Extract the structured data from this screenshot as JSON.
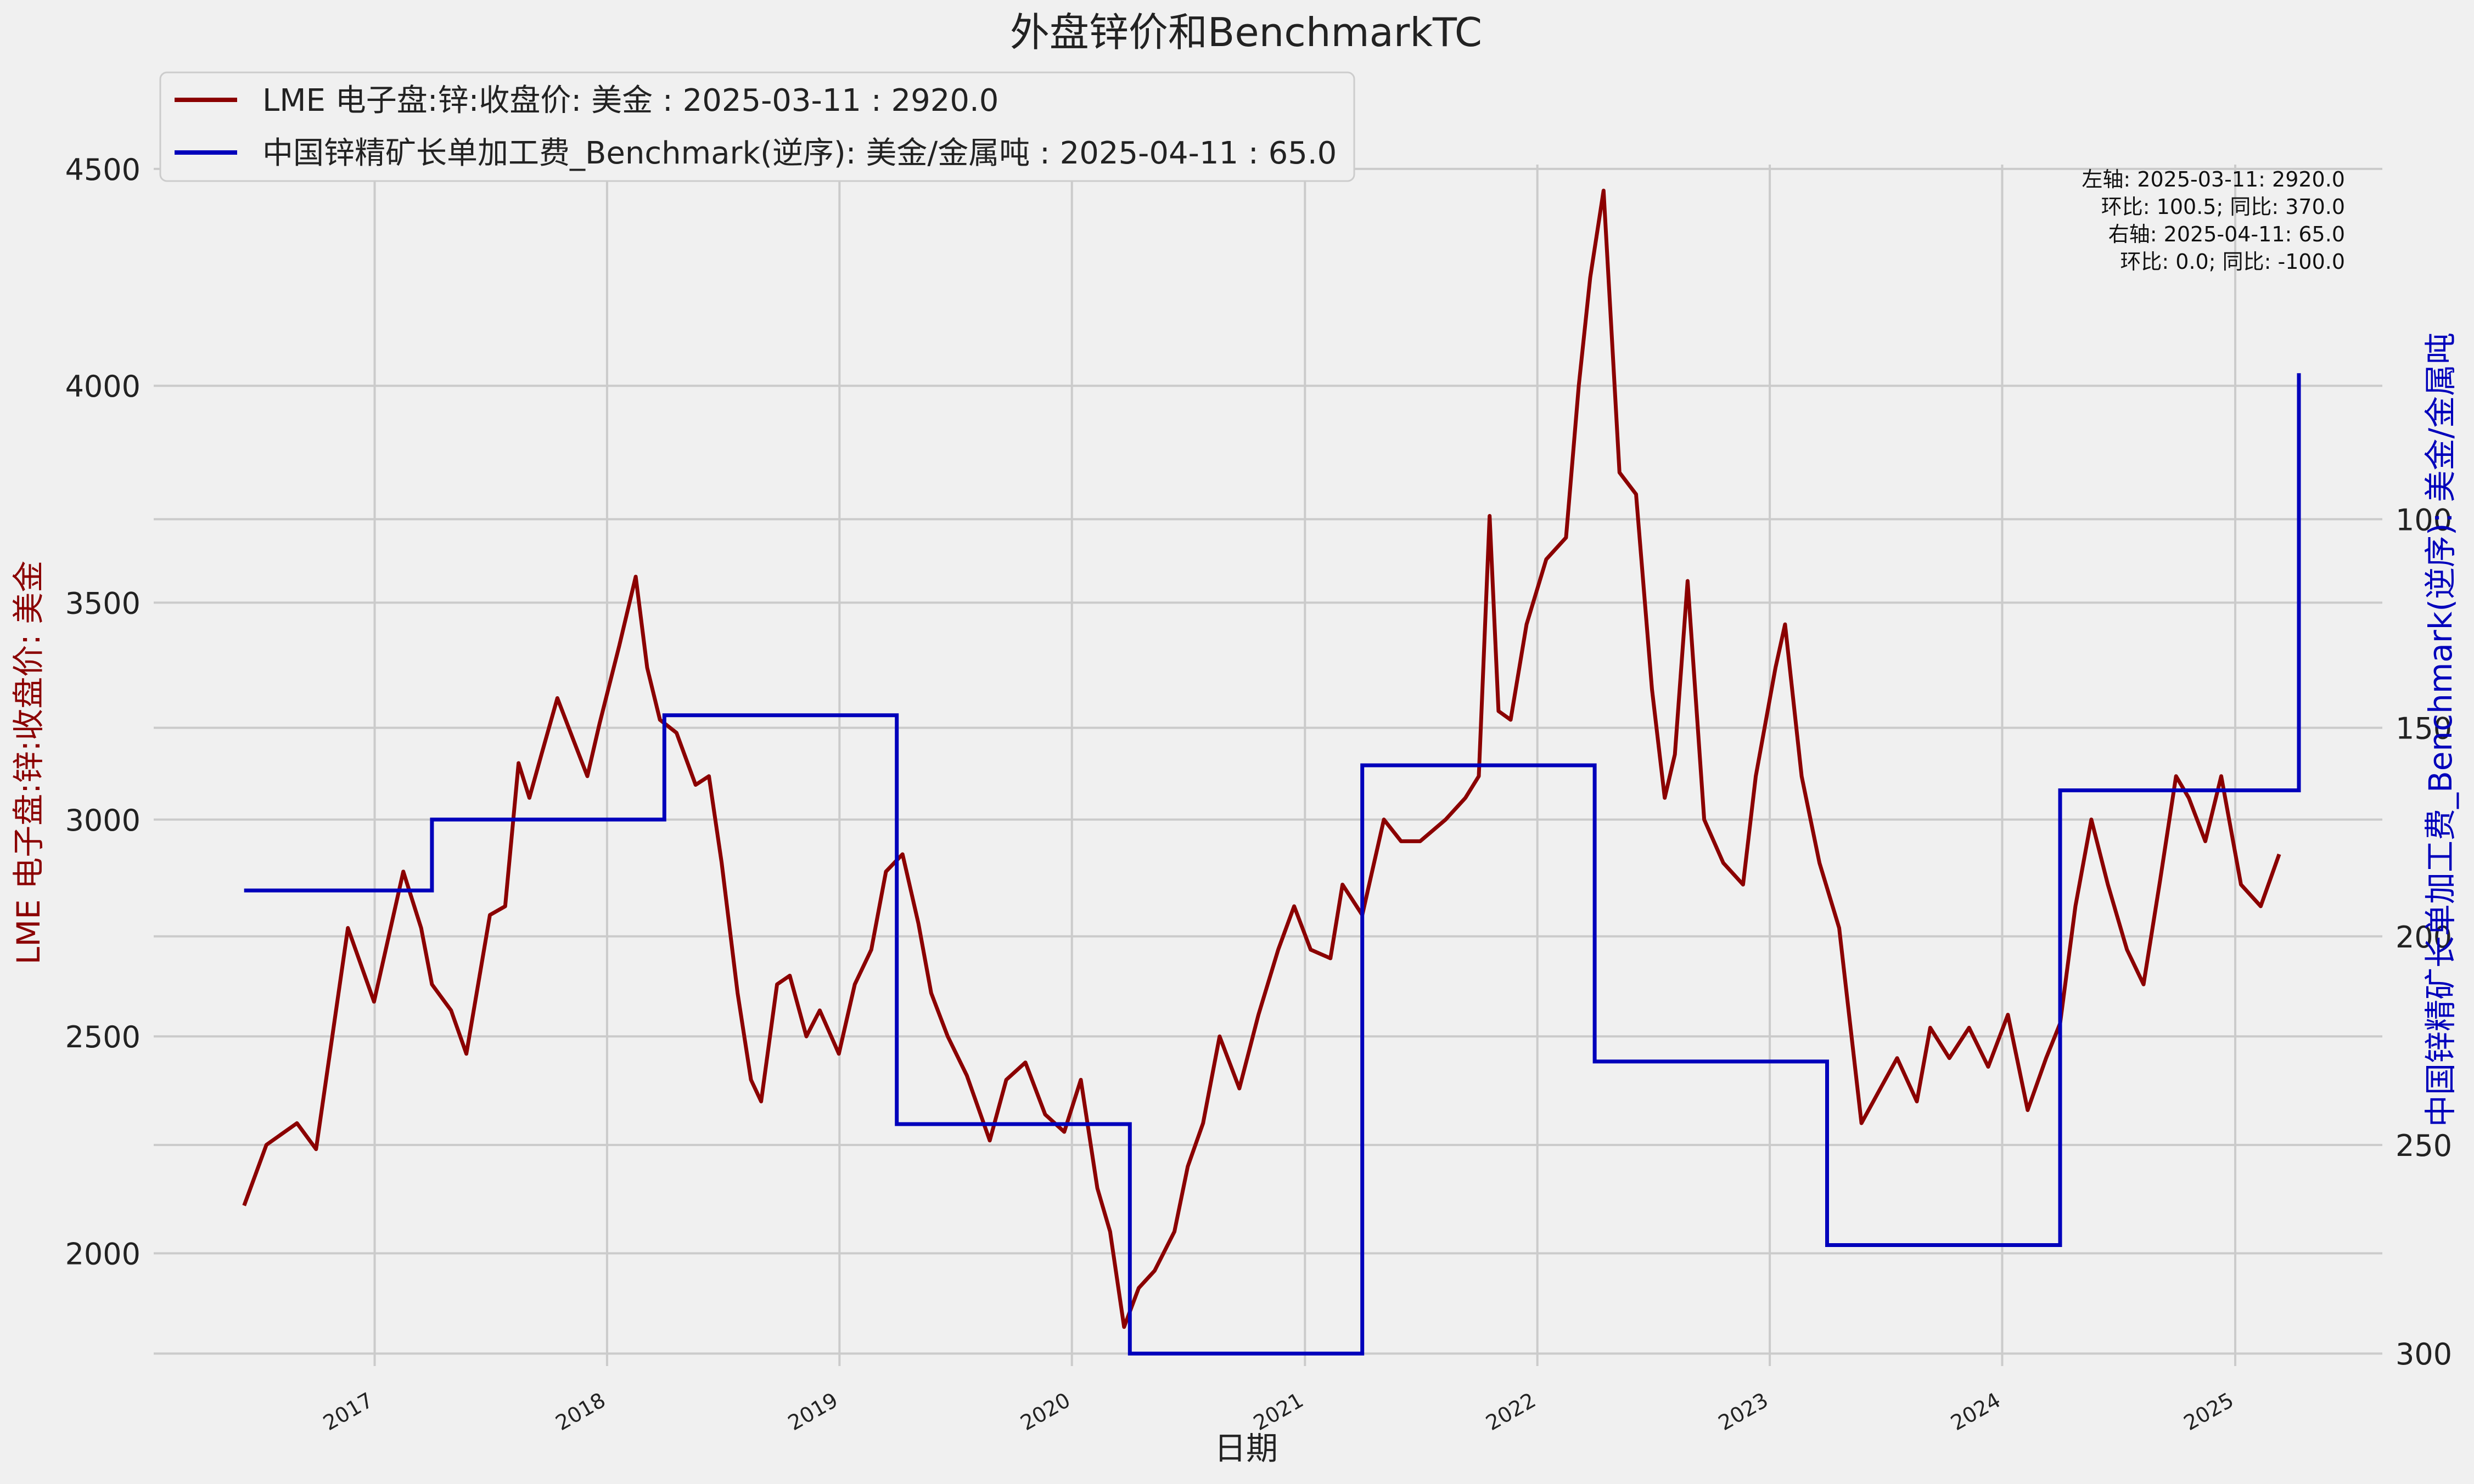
{
  "colors": {
    "left_series": "#8b0000",
    "right_series": "#0000bb",
    "grid": "#cbcbcb",
    "background": "#f0f0f0"
  },
  "chart_data": {
    "type": "line",
    "title": "外盘锌价和BenchmarkTC",
    "xlabel": "日期",
    "ylabel_left": "LME 电子盘:锌:收盘价: 美金",
    "ylabel_right": "中国锌精矿长单加工费_Benchmark(逆序): 美金/金属吨",
    "x_range": [
      "2016-01-20",
      "2025-08-20"
    ],
    "y_left_range": [
      1740,
      4510
    ],
    "y_right_range": [
      303,
      15
    ],
    "y_right_inverted": true,
    "y_left_ticks": [
      "2000",
      "2500",
      "3000",
      "3500",
      "4000",
      "4500"
    ],
    "y_right_ticks": [
      "100",
      "150",
      "200",
      "250",
      "300"
    ],
    "x_ticks": [
      "2017",
      "2018",
      "2019",
      "2020",
      "2021",
      "2022",
      "2023",
      "2024",
      "2025"
    ],
    "grid": true,
    "legend_position": "top-left",
    "legend": [
      "LME 电子盘:锌:收盘价: 美金 : 2025-03-11 : 2920.0",
      "中国锌精矿长单加工费_Benchmark(逆序): 美金/金属吨 : 2025-04-11 : 65.0"
    ],
    "annotation": [
      "左轴:  2025-03-11: 2920.0",
      "环比: 100.5; 同比: 370.0",
      "右轴:  2025-04-11: 65.0",
      "环比: 0.0; 同比: -100.0"
    ],
    "series": [
      {
        "name": "LME 电子盘:锌:收盘价: 美金",
        "axis": "left",
        "points": [
          [
            "2016-06-10",
            2110
          ],
          [
            "2016-07-15",
            2250
          ],
          [
            "2016-09-01",
            2300
          ],
          [
            "2016-10-01",
            2240
          ],
          [
            "2016-11-20",
            2750
          ],
          [
            "2016-12-31",
            2580
          ],
          [
            "2017-02-15",
            2880
          ],
          [
            "2017-03-15",
            2750
          ],
          [
            "2017-04-01",
            2620
          ],
          [
            "2017-05-01",
            2560
          ],
          [
            "2017-05-25",
            2460
          ],
          [
            "2017-07-01",
            2780
          ],
          [
            "2017-07-25",
            2800
          ],
          [
            "2017-08-15",
            3130
          ],
          [
            "2017-09-01",
            3050
          ],
          [
            "2017-09-20",
            3150
          ],
          [
            "2017-10-15",
            3280
          ],
          [
            "2017-11-10",
            3180
          ],
          [
            "2017-12-01",
            3100
          ],
          [
            "2017-12-20",
            3220
          ],
          [
            "2018-01-20",
            3400
          ],
          [
            "2018-02-15",
            3560
          ],
          [
            "2018-03-05",
            3350
          ],
          [
            "2018-03-25",
            3230
          ],
          [
            "2018-04-20",
            3200
          ],
          [
            "2018-05-20",
            3080
          ],
          [
            "2018-06-10",
            3100
          ],
          [
            "2018-06-30",
            2900
          ],
          [
            "2018-07-25",
            2600
          ],
          [
            "2018-08-15",
            2400
          ],
          [
            "2018-08-31",
            2350
          ],
          [
            "2018-09-25",
            2620
          ],
          [
            "2018-10-15",
            2640
          ],
          [
            "2018-11-10",
            2500
          ],
          [
            "2018-12-01",
            2560
          ],
          [
            "2018-12-31",
            2460
          ],
          [
            "2019-01-25",
            2620
          ],
          [
            "2019-02-20",
            2700
          ],
          [
            "2019-03-15",
            2880
          ],
          [
            "2019-04-10",
            2920
          ],
          [
            "2019-05-05",
            2760
          ],
          [
            "2019-05-25",
            2600
          ],
          [
            "2019-06-20",
            2500
          ],
          [
            "2019-07-20",
            2410
          ],
          [
            "2019-08-25",
            2260
          ],
          [
            "2019-09-20",
            2400
          ],
          [
            "2019-10-20",
            2440
          ],
          [
            "2019-11-20",
            2320
          ],
          [
            "2019-12-20",
            2280
          ],
          [
            "2020-01-15",
            2400
          ],
          [
            "2020-02-10",
            2150
          ],
          [
            "2020-03-01",
            2050
          ],
          [
            "2020-03-23",
            1830
          ],
          [
            "2020-04-15",
            1920
          ],
          [
            "2020-05-10",
            1960
          ],
          [
            "2020-06-10",
            2050
          ],
          [
            "2020-07-01",
            2200
          ],
          [
            "2020-07-25",
            2300
          ],
          [
            "2020-08-20",
            2500
          ],
          [
            "2020-09-20",
            2380
          ],
          [
            "2020-10-20",
            2550
          ],
          [
            "2020-11-20",
            2700
          ],
          [
            "2020-12-15",
            2800
          ],
          [
            "2021-01-10",
            2700
          ],
          [
            "2021-02-10",
            2680
          ],
          [
            "2021-03-01",
            2850
          ],
          [
            "2021-04-01",
            2780
          ],
          [
            "2021-05-05",
            3000
          ],
          [
            "2021-06-01",
            2950
          ],
          [
            "2021-07-01",
            2950
          ],
          [
            "2021-08-10",
            3000
          ],
          [
            "2021-09-10",
            3050
          ],
          [
            "2021-10-01",
            3100
          ],
          [
            "2021-10-18",
            3700
          ],
          [
            "2021-11-01",
            3250
          ],
          [
            "2021-11-20",
            3230
          ],
          [
            "2021-12-15",
            3450
          ],
          [
            "2022-01-15",
            3600
          ],
          [
            "2022-02-15",
            3650
          ],
          [
            "2022-03-07",
            4000
          ],
          [
            "2022-03-25",
            4250
          ],
          [
            "2022-04-15",
            4450
          ],
          [
            "2022-05-10",
            3800
          ],
          [
            "2022-06-05",
            3750
          ],
          [
            "2022-06-30",
            3300
          ],
          [
            "2022-07-20",
            3050
          ],
          [
            "2022-08-05",
            3150
          ],
          [
            "2022-08-25",
            3550
          ],
          [
            "2022-09-20",
            3000
          ],
          [
            "2022-10-20",
            2900
          ],
          [
            "2022-11-20",
            2850
          ],
          [
            "2022-12-10",
            3100
          ],
          [
            "2023-01-10",
            3350
          ],
          [
            "2023-01-25",
            3450
          ],
          [
            "2023-02-20",
            3100
          ],
          [
            "2023-03-20",
            2900
          ],
          [
            "2023-04-20",
            2750
          ],
          [
            "2023-05-25",
            2300
          ],
          [
            "2023-06-20",
            2370
          ],
          [
            "2023-07-20",
            2450
          ],
          [
            "2023-08-20",
            2350
          ],
          [
            "2023-09-10",
            2520
          ],
          [
            "2023-10-10",
            2450
          ],
          [
            "2023-11-10",
            2520
          ],
          [
            "2023-12-10",
            2430
          ],
          [
            "2024-01-10",
            2550
          ],
          [
            "2024-02-10",
            2330
          ],
          [
            "2024-03-10",
            2450
          ],
          [
            "2024-04-01",
            2530
          ],
          [
            "2024-04-25",
            2800
          ],
          [
            "2024-05-20",
            3000
          ],
          [
            "2024-06-15",
            2850
          ],
          [
            "2024-07-15",
            2700
          ],
          [
            "2024-08-10",
            2620
          ],
          [
            "2024-09-05",
            2860
          ],
          [
            "2024-09-30",
            3100
          ],
          [
            "2024-10-20",
            3050
          ],
          [
            "2024-11-15",
            2950
          ],
          [
            "2024-12-10",
            3100
          ],
          [
            "2025-01-10",
            2850
          ],
          [
            "2025-02-10",
            2800
          ],
          [
            "2025-03-11",
            2920
          ]
        ]
      },
      {
        "name": "中国锌精矿长单加工费_Benchmark(逆序): 美金/金属吨",
        "axis": "right",
        "step": true,
        "points": [
          [
            "2016-06-10",
            189
          ],
          [
            "2017-04-01",
            172
          ],
          [
            "2018-04-01",
            147
          ],
          [
            "2019-04-01",
            245
          ],
          [
            "2020-04-01",
            300
          ],
          [
            "2021-04-01",
            159
          ],
          [
            "2022-04-01",
            230
          ],
          [
            "2023-04-01",
            274
          ],
          [
            "2024-04-01",
            165
          ],
          [
            "2025-04-11",
            65
          ]
        ]
      }
    ]
  }
}
